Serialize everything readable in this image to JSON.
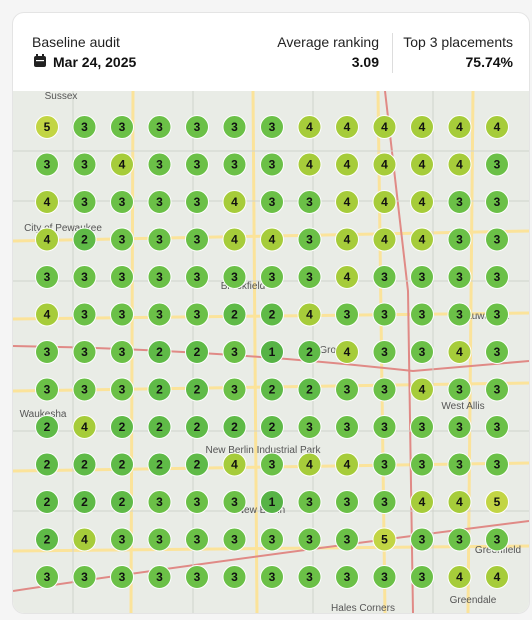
{
  "header": {
    "audit_label": "Baseline audit",
    "date": "Mar 24, 2025",
    "average_ranking_label": "Average ranking",
    "average_ranking": "3.09",
    "top3_label": "Top 3 placements",
    "top3": "75.74%"
  },
  "rank_colors": {
    "1": "#56b346",
    "2": "#5fba47",
    "3": "#6bc047",
    "4": "#a6cc3a",
    "5": "#c2d544"
  },
  "map": {
    "labels": [
      "Sussex",
      "City of Pewaukee",
      "Brookfield",
      "Elm Grove",
      "Wauwatosa",
      "West Allis",
      "Waukesha",
      "New Berlin",
      "New Berlin Industrial Park",
      "Greenfield",
      "Greendale",
      "Hales Corners"
    ]
  },
  "grid": {
    "rows": [
      [
        5,
        3,
        3,
        3,
        3,
        3,
        3,
        4,
        4,
        4,
        4,
        4,
        4
      ],
      [
        3,
        3,
        4,
        3,
        3,
        3,
        3,
        4,
        4,
        4,
        4,
        4,
        3
      ],
      [
        4,
        3,
        3,
        3,
        3,
        4,
        3,
        3,
        4,
        4,
        4,
        3,
        3
      ],
      [
        4,
        2,
        3,
        3,
        3,
        4,
        4,
        3,
        4,
        4,
        4,
        3,
        3
      ],
      [
        3,
        3,
        3,
        3,
        3,
        3,
        3,
        3,
        4,
        3,
        3,
        3,
        3
      ],
      [
        4,
        3,
        3,
        3,
        3,
        2,
        2,
        4,
        3,
        3,
        3,
        3,
        3
      ],
      [
        3,
        3,
        3,
        2,
        2,
        3,
        1,
        2,
        4,
        3,
        3,
        4,
        3
      ],
      [
        3,
        3,
        3,
        2,
        2,
        3,
        2,
        2,
        3,
        3,
        4,
        3,
        3
      ],
      [
        2,
        4,
        2,
        2,
        2,
        2,
        2,
        3,
        3,
        3,
        3,
        3,
        3
      ],
      [
        2,
        2,
        2,
        2,
        2,
        4,
        3,
        4,
        4,
        3,
        3,
        3,
        3
      ],
      [
        2,
        2,
        2,
        3,
        3,
        3,
        1,
        3,
        3,
        3,
        4,
        4,
        5
      ],
      [
        2,
        4,
        3,
        3,
        3,
        3,
        3,
        3,
        3,
        5,
        3,
        3,
        3
      ],
      [
        3,
        3,
        3,
        3,
        3,
        3,
        3,
        3,
        3,
        3,
        3,
        4,
        4
      ]
    ]
  }
}
